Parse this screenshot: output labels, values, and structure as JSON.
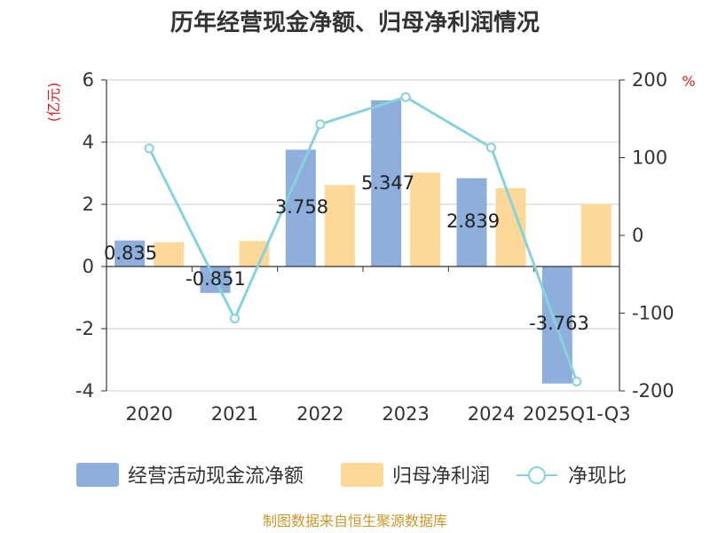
{
  "chart_data": {
    "type": "bar+line",
    "title": "历年经营现金净额、归母净利润情况",
    "categories": [
      "2020",
      "2021",
      "2022",
      "2023",
      "2024",
      "2025Q1-Q3"
    ],
    "series": [
      {
        "name": "经营活动现金流净额",
        "type": "bar",
        "axis": "left",
        "values": [
          0.835,
          -0.851,
          3.758,
          5.347,
          2.839,
          -3.763
        ],
        "labels": [
          "0.835",
          "-0.851",
          "3.758",
          "5.347",
          "2.839",
          "-3.763"
        ]
      },
      {
        "name": "归母净利润",
        "type": "bar",
        "axis": "left",
        "values": [
          0.78,
          0.82,
          2.62,
          3.02,
          2.52,
          2.02
        ]
      },
      {
        "name": "净现比",
        "type": "line",
        "axis": "right",
        "values": [
          112,
          -107,
          143,
          178,
          113,
          -188
        ]
      }
    ],
    "left_axis": {
      "unit": "(亿元)",
      "min": -4,
      "max": 6,
      "ticks": [
        "6",
        "4",
        "2",
        "0",
        "-2",
        "-4"
      ],
      "tick_values": [
        6,
        4,
        2,
        0,
        -2,
        -4
      ]
    },
    "right_axis": {
      "unit": "%",
      "min": -200,
      "max": 200,
      "ticks": [
        "200",
        "100",
        "0",
        "-100",
        "-200"
      ],
      "tick_values": [
        200,
        100,
        0,
        -100,
        -200
      ]
    },
    "colors": {
      "cash_flow": "#8eaedb",
      "net_profit": "#fdd898",
      "ratio": "#86d3dd",
      "grid": "#cccccc",
      "axis": "#333333"
    }
  },
  "legend": [
    {
      "label": "经营活动现金流净额",
      "kind": "bar",
      "color": "#8eaedb"
    },
    {
      "label": "归母净利润",
      "kind": "bar",
      "color": "#fdd898"
    },
    {
      "label": "净现比",
      "kind": "line",
      "color": "#86d3dd"
    }
  ],
  "source": "制图数据来自恒生聚源数据库"
}
